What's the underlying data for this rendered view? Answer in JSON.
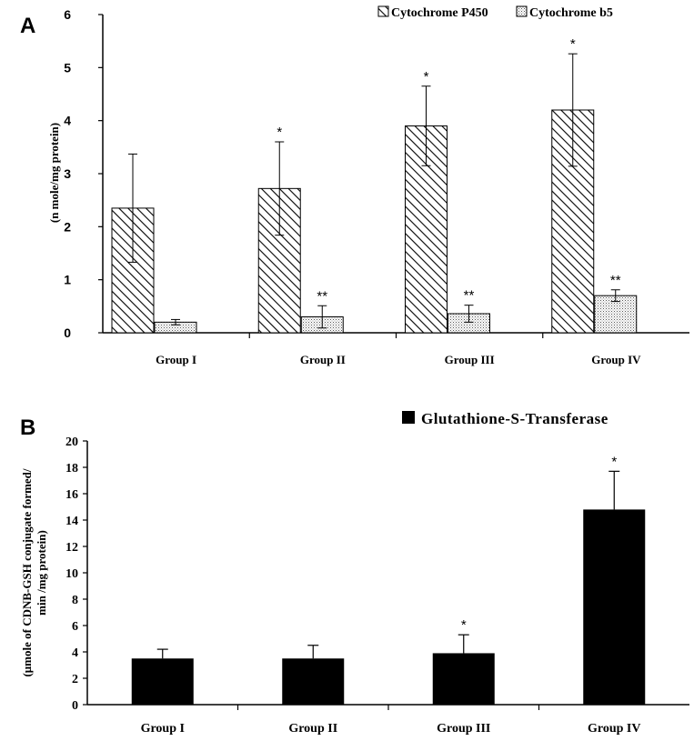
{
  "chart_data": [
    {
      "panel": "A",
      "type": "bar",
      "categories": [
        "Group I",
        "Group II",
        "Group III",
        "Group IV"
      ],
      "ylabel": "(n mole/mg protein)",
      "ylim": [
        0,
        6
      ],
      "yticks": [
        "0",
        "1",
        "2",
        "3",
        "4",
        "5",
        "6"
      ],
      "series": [
        {
          "name": "Cytochrome P450",
          "pattern": "diagonal-hatch",
          "values": [
            2.35,
            2.72,
            3.9,
            4.2
          ],
          "errors": [
            1.02,
            0.88,
            0.75,
            1.06
          ],
          "significance": [
            "",
            "*",
            "*",
            "*"
          ]
        },
        {
          "name": "Cytochrome b5",
          "pattern": "dotted",
          "values": [
            0.2,
            0.3,
            0.36,
            0.7
          ],
          "errors": [
            0.05,
            0.21,
            0.16,
            0.11
          ],
          "significance": [
            "",
            "**",
            "**",
            "**"
          ]
        }
      ],
      "legend_position": "top-right"
    },
    {
      "panel": "B",
      "type": "bar",
      "categories": [
        "Group I",
        "Group II",
        "Group III",
        "Group IV"
      ],
      "ylabel_lines": [
        "(μmole of CDNB-GSH conjugate formed/",
        "min /mg protein)"
      ],
      "ylim": [
        0,
        20
      ],
      "yticks": [
        "0",
        "2",
        "4",
        "6",
        "8",
        "10",
        "12",
        "14",
        "16",
        "18",
        "20"
      ],
      "series": [
        {
          "name": "Glutathione-S-Transferase",
          "color": "#000000",
          "values": [
            3.5,
            3.5,
            3.9,
            14.8
          ],
          "errors": [
            0.7,
            1.0,
            1.4,
            2.9
          ],
          "significance": [
            "",
            "",
            "*",
            "*"
          ]
        }
      ],
      "legend_position": "top-right"
    }
  ]
}
